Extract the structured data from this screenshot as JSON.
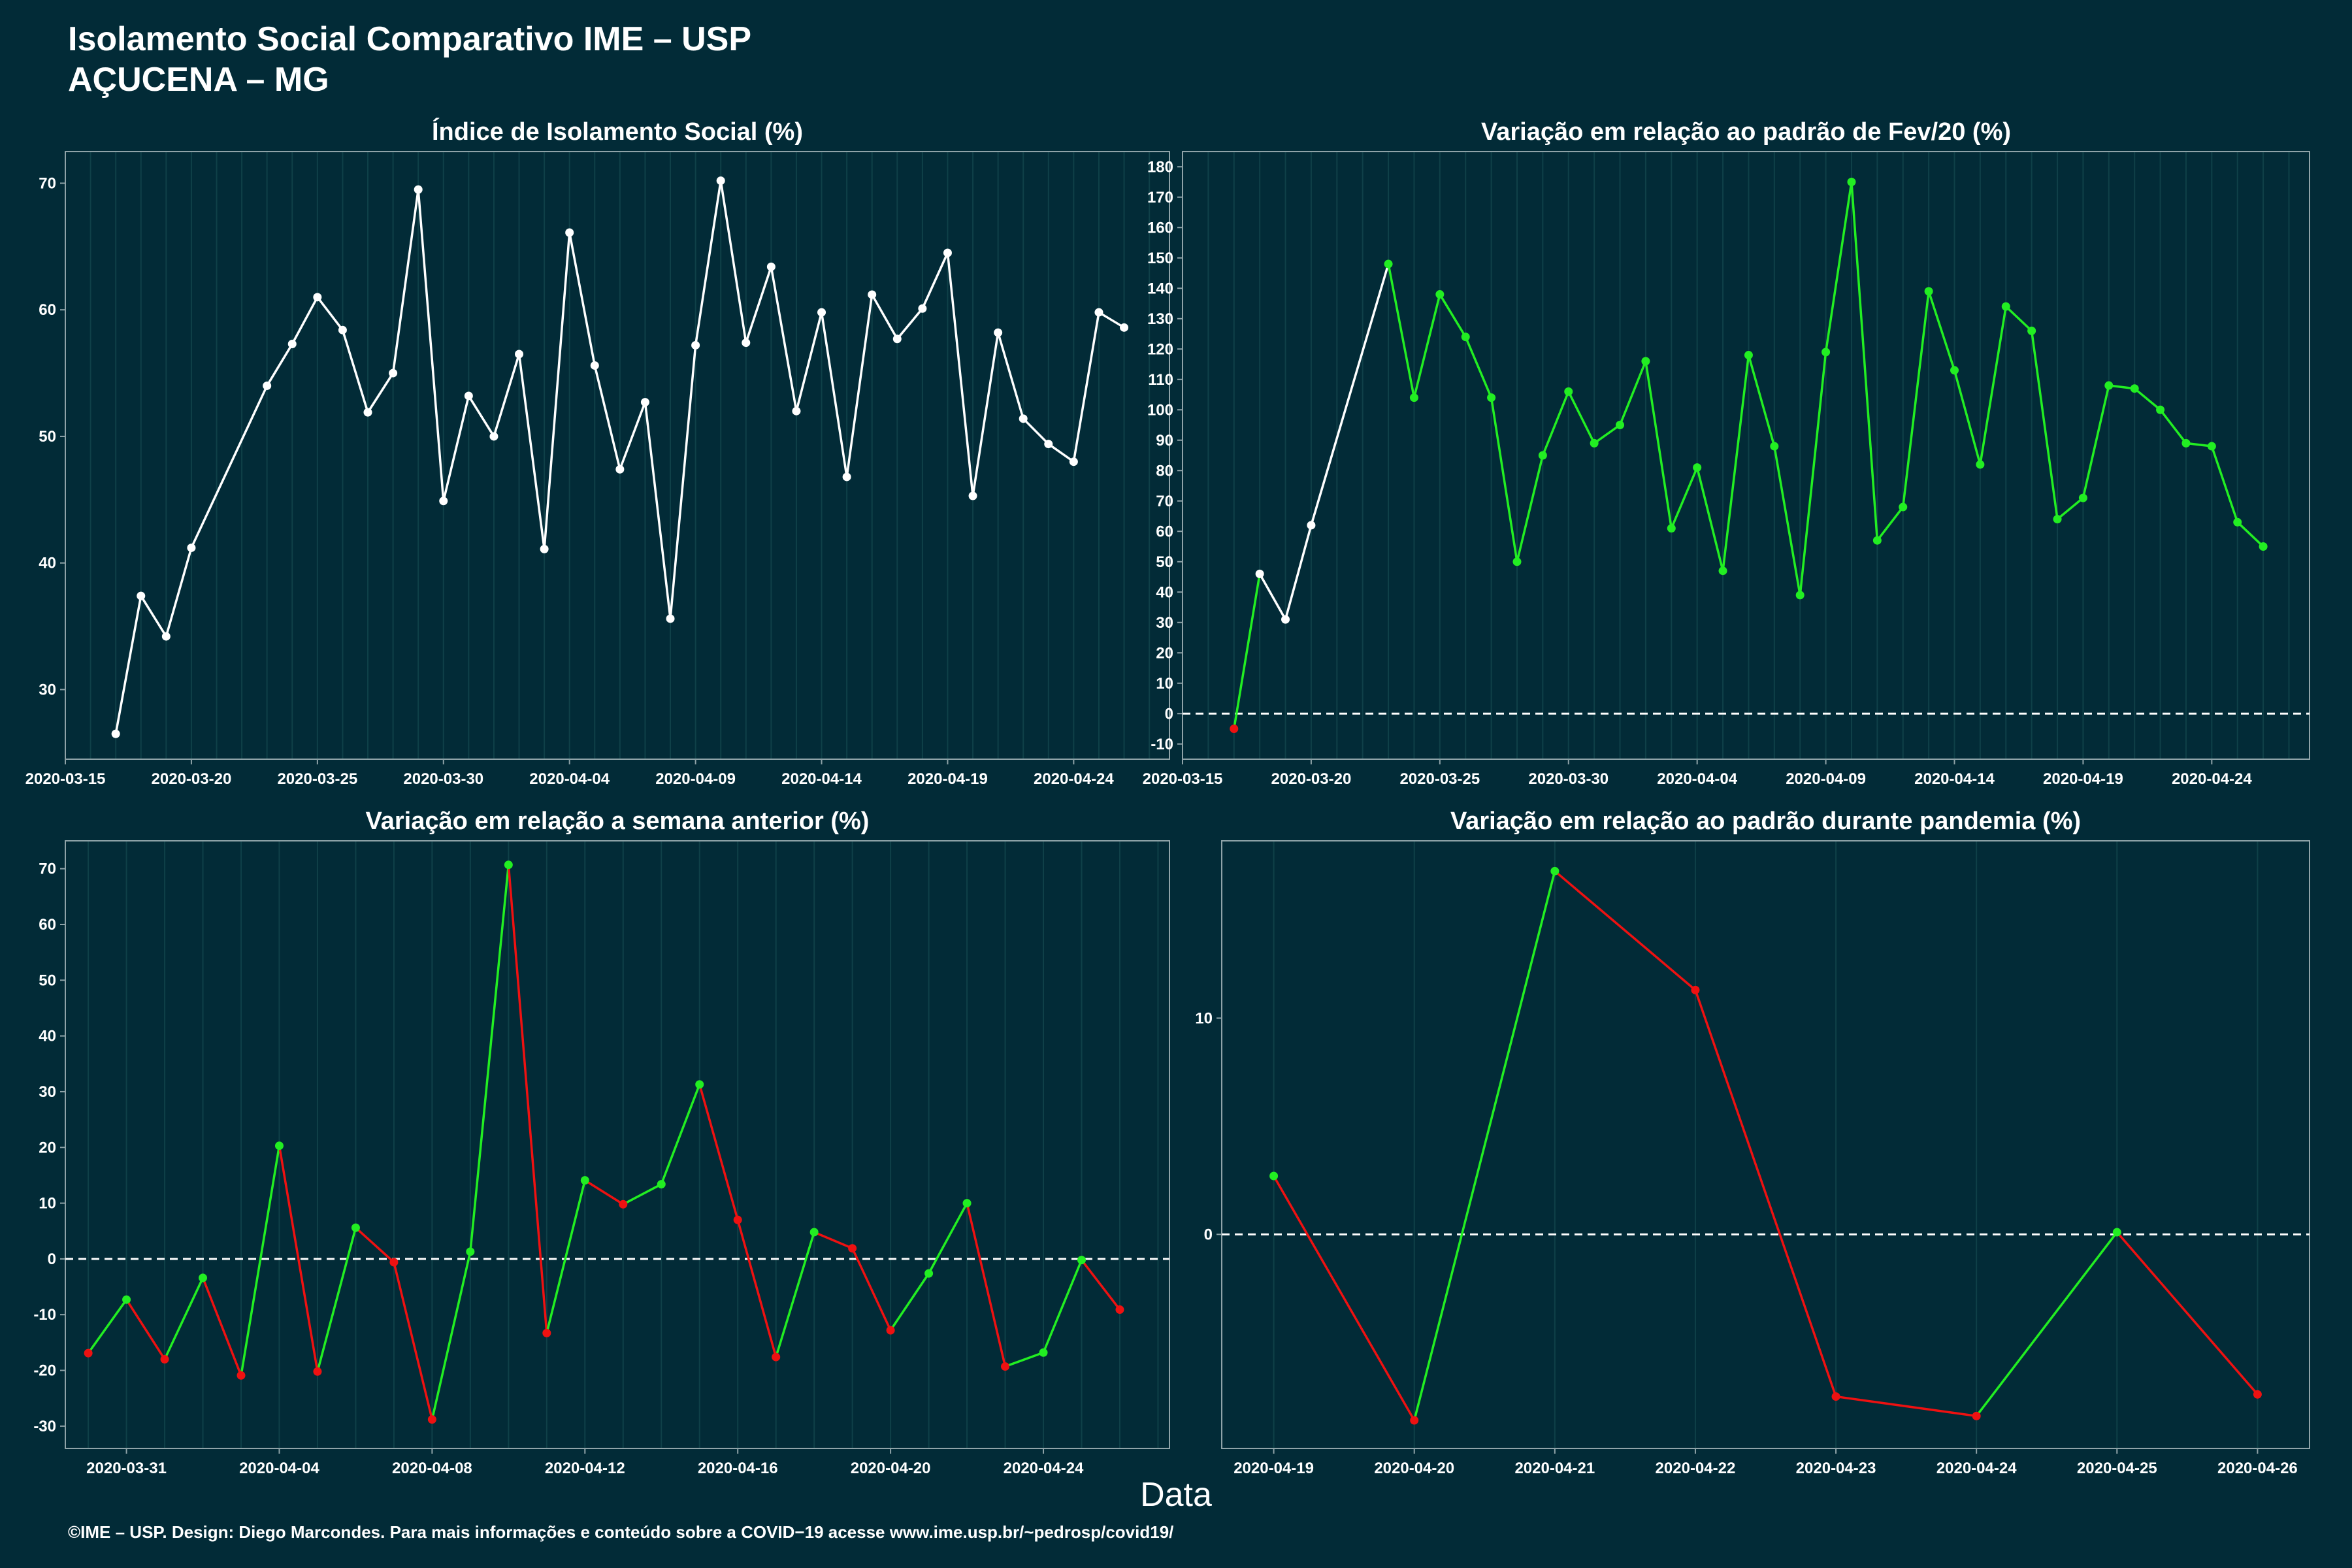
{
  "header": {
    "title_line1": "Isolamento Social Comparativo IME – USP",
    "title_line2": "AÇUCENA – MG"
  },
  "xlabel": "Data",
  "footer": "©IME – USP. Design: Diego Marcondes. Para mais informações e conteúdo sobre a COVID−19 acesse www.ime.usp.br/~pedrosp/covid19/",
  "colors": {
    "background": "#022b37",
    "white": "#ffffff",
    "positive": "#22ee22",
    "negative": "#ee1111",
    "grid": "#0f4048",
    "axis": "#8fa3a8"
  },
  "chart_data": [
    {
      "id": "indice",
      "type": "line",
      "title": "Índice de Isolamento Social (%)",
      "x_type": "date",
      "x": [
        "2020-03-17",
        "2020-03-18",
        "2020-03-19",
        "2020-03-20",
        "2020-03-23",
        "2020-03-24",
        "2020-03-25",
        "2020-03-26",
        "2020-03-27",
        "2020-03-28",
        "2020-03-29",
        "2020-03-30",
        "2020-03-31",
        "2020-04-01",
        "2020-04-02",
        "2020-04-03",
        "2020-04-04",
        "2020-04-05",
        "2020-04-06",
        "2020-04-07",
        "2020-04-08",
        "2020-04-09",
        "2020-04-10",
        "2020-04-11",
        "2020-04-12",
        "2020-04-13",
        "2020-04-14",
        "2020-04-15",
        "2020-04-16",
        "2020-04-17",
        "2020-04-18",
        "2020-04-19",
        "2020-04-20",
        "2020-04-21",
        "2020-04-22",
        "2020-04-23",
        "2020-04-24",
        "2020-04-25",
        "2020-04-26"
      ],
      "values": [
        26.5,
        37.4,
        34.2,
        41.2,
        54.0,
        57.3,
        61.0,
        58.4,
        51.9,
        55.0,
        69.5,
        44.9,
        53.2,
        50.0,
        56.5,
        41.1,
        66.1,
        55.6,
        47.4,
        52.7,
        35.6,
        57.2,
        70.2,
        57.4,
        63.4,
        52.0,
        59.8,
        46.8,
        61.2,
        57.7,
        60.1,
        64.5,
        45.3,
        58.2,
        51.4,
        49.4,
        48.0,
        59.8,
        58.6
      ],
      "xlim": [
        "2020-03-15",
        "2020-04-27.8"
      ],
      "ylim": [
        24.5,
        72.5
      ],
      "x_ticks": [
        "2020-03-15",
        "2020-03-20",
        "2020-03-25",
        "2020-03-30",
        "2020-04-04",
        "2020-04-09",
        "2020-04-14",
        "2020-04-19",
        "2020-04-24"
      ],
      "y_ticks": [
        30,
        40,
        50,
        60,
        70
      ],
      "color_rule": "white",
      "zero_line": false
    },
    {
      "id": "fev",
      "type": "line",
      "title": "Variação em relação ao padrão de Fev/20 (%)",
      "x_type": "date",
      "x": [
        "2020-03-17",
        "2020-03-18",
        "2020-03-19",
        "2020-03-20",
        "2020-03-23",
        "2020-03-24",
        "2020-03-25",
        "2020-03-26",
        "2020-03-27",
        "2020-03-28",
        "2020-03-29",
        "2020-03-30",
        "2020-03-31",
        "2020-04-01",
        "2020-04-02",
        "2020-04-03",
        "2020-04-04",
        "2020-04-05",
        "2020-04-06",
        "2020-04-07",
        "2020-04-08",
        "2020-04-09",
        "2020-04-10",
        "2020-04-11",
        "2020-04-12",
        "2020-04-13",
        "2020-04-14",
        "2020-04-15",
        "2020-04-16",
        "2020-04-17",
        "2020-04-18",
        "2020-04-19",
        "2020-04-20",
        "2020-04-21",
        "2020-04-22",
        "2020-04-23",
        "2020-04-24",
        "2020-04-25",
        "2020-04-26"
      ],
      "values": [
        -5,
        46,
        31,
        62,
        148,
        104,
        138,
        124,
        104,
        50,
        85,
        106,
        89,
        95,
        116,
        61,
        81,
        47,
        118,
        88,
        39,
        119,
        175,
        57,
        68,
        139,
        113,
        82,
        134,
        126,
        64,
        71,
        108,
        107,
        100,
        89,
        88,
        63,
        55
      ],
      "xlim": [
        "2020-03-15",
        "2020-04-27.8"
      ],
      "ylim": [
        -15,
        185
      ],
      "x_ticks": [
        "2020-03-15",
        "2020-03-20",
        "2020-03-25",
        "2020-03-30",
        "2020-04-04",
        "2020-04-09",
        "2020-04-14",
        "2020-04-19",
        "2020-04-24"
      ],
      "y_ticks": [
        -10,
        0,
        10,
        20,
        30,
        40,
        50,
        60,
        70,
        80,
        90,
        100,
        110,
        120,
        130,
        140,
        150,
        160,
        170,
        180
      ],
      "color_rule": "white-until-2020-03-23",
      "zero_line": true
    },
    {
      "id": "semana",
      "type": "line",
      "title": "Variação em relação a semana anterior (%)",
      "x_type": "date",
      "x": [
        "2020-03-30",
        "2020-03-31",
        "2020-04-01",
        "2020-04-02",
        "2020-04-03",
        "2020-04-04",
        "2020-04-05",
        "2020-04-06",
        "2020-04-07",
        "2020-04-08",
        "2020-04-09",
        "2020-04-10",
        "2020-04-11",
        "2020-04-12",
        "2020-04-13",
        "2020-04-14",
        "2020-04-15",
        "2020-04-16",
        "2020-04-17",
        "2020-04-18",
        "2020-04-19",
        "2020-04-20",
        "2020-04-21",
        "2020-04-22",
        "2020-04-23",
        "2020-04-24",
        "2020-04-25",
        "2020-04-26"
      ],
      "values": [
        -16.9,
        -7.3,
        -18.0,
        -3.4,
        -20.9,
        20.3,
        -20.2,
        5.6,
        -0.6,
        -28.8,
        1.3,
        70.7,
        -13.3,
        14.1,
        9.8,
        13.4,
        31.3,
        7.0,
        -17.6,
        4.8,
        1.9,
        -12.8,
        -2.6,
        10.0,
        -19.3,
        -16.8,
        -0.2,
        -9.1
      ],
      "xlim": [
        "2020-03-29.4",
        "2020-04-27.3"
      ],
      "ylim": [
        -34,
        75
      ],
      "x_ticks": [
        "2020-03-31",
        "2020-04-04",
        "2020-04-08",
        "2020-04-12",
        "2020-04-16",
        "2020-04-20",
        "2020-04-24"
      ],
      "y_ticks": [
        -30,
        -20,
        -10,
        0,
        10,
        20,
        30,
        40,
        50,
        60,
        70
      ],
      "color_rule": "sign",
      "zero_line": true
    },
    {
      "id": "pandemia",
      "type": "line",
      "title": "Variação em relação ao padrão durante pandemia (%)",
      "x_type": "date",
      "x": [
        "2020-04-19",
        "2020-04-20",
        "2020-04-21",
        "2020-04-22",
        "2020-04-23",
        "2020-04-24",
        "2020-04-25",
        "2020-04-26"
      ],
      "values": [
        2.7,
        -8.6,
        16.8,
        11.3,
        -7.5,
        -8.4,
        0.1,
        -7.4
      ],
      "xlim": [
        "2020-04-18.63",
        "2020-04-26.37"
      ],
      "ylim": [
        -9.9,
        18.2
      ],
      "x_ticks": [
        "2020-04-19",
        "2020-04-20",
        "2020-04-21",
        "2020-04-22",
        "2020-04-23",
        "2020-04-24",
        "2020-04-25",
        "2020-04-26"
      ],
      "y_ticks": [
        0,
        10
      ],
      "color_rule": "sign",
      "zero_line": true
    }
  ]
}
